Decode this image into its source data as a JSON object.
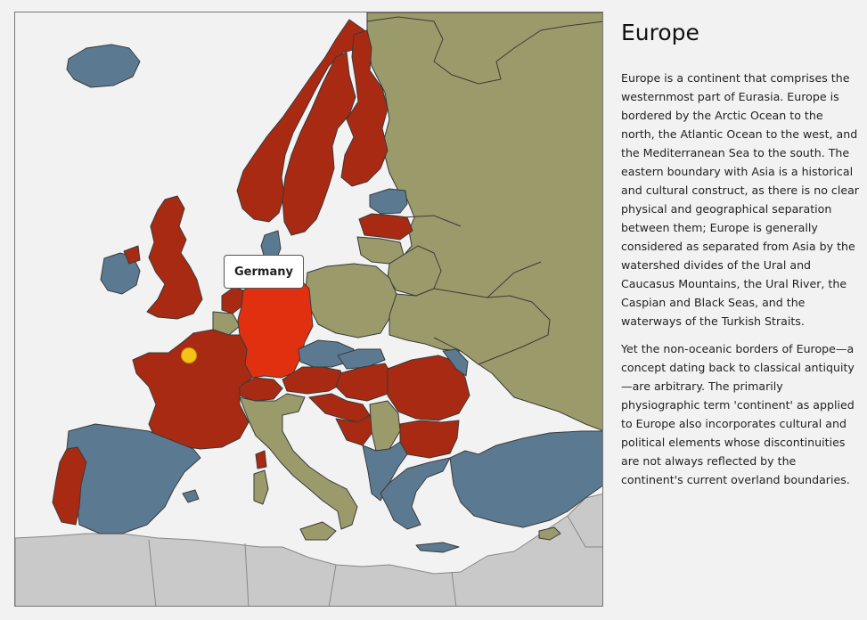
{
  "map": {
    "selected_country": "Germany",
    "colors": {
      "red": "#a82a12",
      "olive": "#9b9a6a",
      "blue": "#5b7a92",
      "selected": "#e03010",
      "outside": "#c9c9c9",
      "marker": "#f5c218"
    }
  },
  "info": {
    "title": "Europe",
    "paragraph1": "Europe is a continent that comprises the westernmost part of Eurasia. Europe is bordered by the Arctic Ocean to the north, the Atlantic Ocean to the west, and the Mediterranean Sea to the south. The eastern boundary with Asia is a historical and cultural construct, as there is no clear physical and geographical separation between them; Europe is generally considered as separated from Asia by the watershed divides of the Ural and Caucasus Mountains, the Ural River, the Caspian and Black Seas, and the waterways of the Turkish Straits.",
    "paragraph2": "Yet the non-oceanic borders of Europe—a concept dating back to classical antiquity—are arbitrary. The primarily physiographic term 'continent' as applied to Europe also incorporates cultural and political elements whose discontinuities are not always reflected by the continent's current overland boundaries."
  }
}
